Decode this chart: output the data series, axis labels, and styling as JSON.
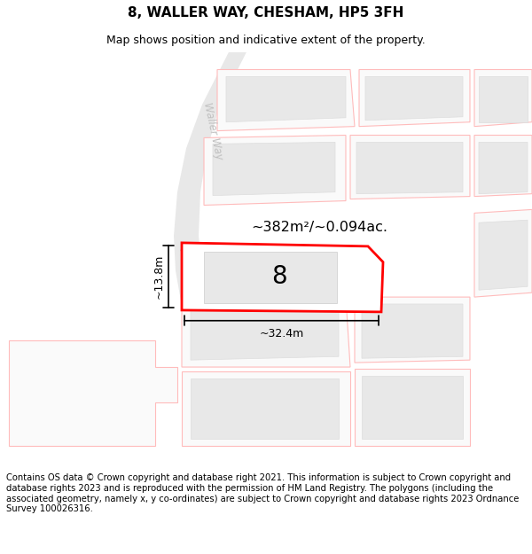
{
  "title": "8, WALLER WAY, CHESHAM, HP5 3FH",
  "subtitle": "Map shows position and indicative extent of the property.",
  "footer": "Contains OS data © Crown copyright and database right 2021. This information is subject to Crown copyright and database rights 2023 and is reproduced with the permission of HM Land Registry. The polygons (including the associated geometry, namely x, y co-ordinates) are subject to Crown copyright and database rights 2023 Ordnance Survey 100026316.",
  "area_label": "~382m²/~0.094ac.",
  "width_label": "~32.4m",
  "height_label": "~13.8m",
  "road_label": "Waller Way",
  "plot_number": "8",
  "background_color": "#ffffff",
  "highlight_stroke": "#ff0000",
  "dim_line_color": "#000000",
  "title_fontsize": 11,
  "subtitle_fontsize": 9,
  "footer_fontsize": 7.2
}
